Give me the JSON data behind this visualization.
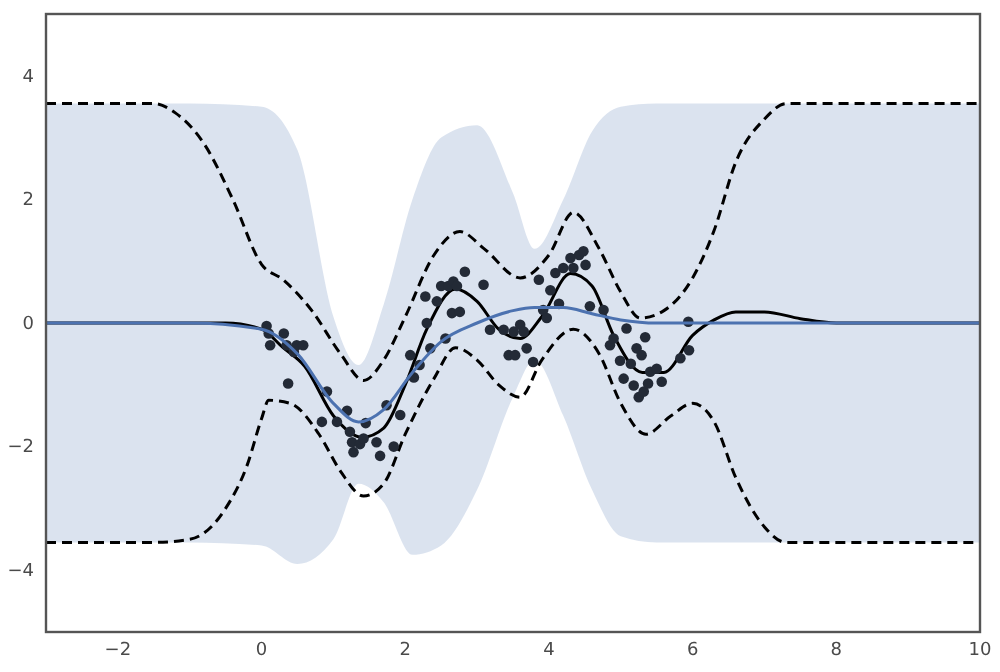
{
  "chart_data": {
    "type": "line",
    "xlim": [
      -3,
      10
    ],
    "ylim": [
      -5,
      5
    ],
    "xticks": [
      {
        "value": -2,
        "label": "−2"
      },
      0,
      2,
      4,
      6,
      8,
      10
    ],
    "yticks": [
      {
        "value": -4,
        "label": "−4"
      },
      {
        "value": -2,
        "label": "−2"
      },
      0,
      2,
      4
    ],
    "grid": false,
    "series": [
      {
        "color": "#4c72b0",
        "line_style": "solid",
        "x": [
          -3,
          -1,
          0,
          0.5,
          1.0,
          1.35,
          1.7,
          2.1,
          2.5,
          3.0,
          3.5,
          3.8,
          4.2,
          4.6,
          5.0,
          5.5,
          6,
          10
        ],
        "values": [
          0,
          0,
          -0.1,
          -0.5,
          -1.3,
          -1.6,
          -1.4,
          -0.8,
          -0.3,
          0.0,
          0.2,
          0.25,
          0.25,
          0.15,
          0.05,
          0.0,
          0,
          0
        ],
        "lower": [
          -3.55,
          -3.55,
          -3.6,
          -3.9,
          -3.5,
          -2.6,
          -2.9,
          -3.75,
          -3.6,
          -2.7,
          -1.2,
          -0.6,
          -1.5,
          -2.7,
          -3.45,
          -3.55,
          -3.55,
          -3.55
        ],
        "upper": [
          3.55,
          3.55,
          3.5,
          2.8,
          0.1,
          -0.68,
          0.3,
          2.0,
          3.0,
          3.2,
          2.1,
          1.2,
          2.0,
          3.1,
          3.5,
          3.55,
          3.55,
          3.55
        ]
      },
      {
        "color": "#000000",
        "line_style": "solid",
        "x": [
          -3,
          -1,
          -0.5,
          0,
          0.3,
          0.6,
          1.0,
          1.4,
          1.7,
          2.0,
          2.3,
          2.7,
          3.0,
          3.3,
          3.6,
          3.9,
          4.3,
          4.6,
          4.9,
          5.3,
          5.6,
          6.0,
          6.3,
          6.6,
          7.0,
          7.5,
          8,
          10
        ],
        "values": [
          0,
          0,
          0,
          -0.1,
          -0.4,
          -0.7,
          -1.5,
          -1.85,
          -1.7,
          -1.0,
          -0.1,
          0.55,
          0.35,
          -0.1,
          -0.25,
          0.1,
          0.8,
          0.6,
          -0.2,
          -0.8,
          -0.8,
          -0.2,
          0.05,
          0.18,
          0.18,
          0.07,
          0,
          0
        ]
      },
      {
        "type": "line",
        "color": "#000000",
        "line_style": "dashed",
        "x": [
          -3,
          -1.5,
          -1.2,
          -0.8,
          -0.4,
          0,
          0.3,
          0.7,
          1.1,
          1.42,
          1.7,
          2.0,
          2.4,
          2.76,
          3.1,
          3.6,
          4.0,
          4.34,
          4.7,
          5.0,
          5.27,
          5.6,
          6.0,
          6.3,
          6.6,
          7.0,
          7.3,
          10
        ],
        "values": [
          3.55,
          3.55,
          3.4,
          2.9,
          2.0,
          0.95,
          0.7,
          0.2,
          -0.5,
          -0.93,
          -0.6,
          0.1,
          1.1,
          1.48,
          1.2,
          0.73,
          1.1,
          1.79,
          1.2,
          0.5,
          0.08,
          0.2,
          0.73,
          1.5,
          2.6,
          3.3,
          3.55,
          3.55
        ]
      },
      {
        "type": "line",
        "color": "#000000",
        "line_style": "dashed",
        "x": [
          -3,
          -1.5,
          -1.0,
          -0.5,
          -0.2,
          0,
          0.1,
          0.4,
          0.8,
          1.1,
          1.42,
          1.7,
          2.0,
          2.4,
          2.7,
          3.0,
          3.3,
          3.6,
          3.9,
          4.34,
          4.7,
          5.0,
          5.35,
          5.7,
          6.0,
          6.3,
          6.6,
          7.0,
          7.3,
          10
        ],
        "values": [
          -3.55,
          -3.55,
          -3.5,
          -3.0,
          -2.3,
          -1.55,
          -1.25,
          -1.3,
          -1.8,
          -2.4,
          -2.8,
          -2.6,
          -1.8,
          -0.9,
          -0.4,
          -0.6,
          -1.0,
          -1.2,
          -0.6,
          -0.1,
          -0.5,
          -1.3,
          -1.8,
          -1.5,
          -1.3,
          -1.6,
          -2.5,
          -3.3,
          -3.55,
          -3.55
        ]
      },
      {
        "type": "scatter",
        "color": "#232a36",
        "marker": "circle",
        "x": [
          0.07,
          0.1,
          0.12,
          0.31,
          0.35,
          0.37,
          0.45,
          0.49,
          0.58,
          0.84,
          0.91,
          1.05,
          1.19,
          1.23,
          1.26,
          1.28,
          1.37,
          1.45,
          1.42,
          1.6,
          1.65,
          1.74,
          1.84,
          1.93,
          2.07,
          2.12,
          2.2,
          2.28,
          2.3,
          2.35,
          2.44,
          2.5,
          2.56,
          2.6,
          2.65,
          2.67,
          2.72,
          2.76,
          2.83,
          3.09,
          3.18,
          3.37,
          3.44,
          3.51,
          3.53,
          3.6,
          3.65,
          3.69,
          3.78,
          3.86,
          3.92,
          3.97,
          4.02,
          4.09,
          4.14,
          4.2,
          4.3,
          4.34,
          4.42,
          4.48,
          4.51,
          4.57,
          4.76,
          4.85,
          4.9,
          4.99,
          5.04,
          5.08,
          5.14,
          5.18,
          5.22,
          5.25,
          5.29,
          5.32,
          5.34,
          5.38,
          5.41,
          5.5,
          5.57,
          5.83,
          5.94,
          5.95
        ],
        "values": [
          -0.05,
          -0.17,
          -0.36,
          -0.17,
          -0.36,
          -0.98,
          -0.47,
          -0.36,
          -0.36,
          -1.6,
          -1.11,
          -1.6,
          -1.42,
          -1.76,
          -1.93,
          -2.09,
          -1.96,
          -1.62,
          -1.87,
          -1.93,
          -2.15,
          -1.33,
          -2.0,
          -1.49,
          -0.52,
          -0.88,
          -0.68,
          0.43,
          0.0,
          -0.41,
          0.35,
          0.6,
          -0.25,
          0.6,
          0.16,
          0.67,
          0.6,
          0.18,
          0.83,
          0.62,
          -0.11,
          -0.11,
          -0.52,
          -0.14,
          -0.52,
          -0.03,
          -0.14,
          -0.41,
          -0.63,
          0.7,
          0.21,
          0.08,
          0.53,
          0.81,
          0.31,
          0.89,
          1.05,
          0.89,
          1.1,
          1.16,
          0.94,
          0.27,
          0.21,
          -0.36,
          -0.25,
          -0.61,
          -0.9,
          -0.09,
          -0.66,
          -1.01,
          -0.41,
          -1.2,
          -0.52,
          -1.11,
          -0.23,
          -0.98,
          -0.79,
          -0.74,
          -0.95,
          -0.57,
          0.02,
          -0.44
        ]
      }
    ]
  }
}
